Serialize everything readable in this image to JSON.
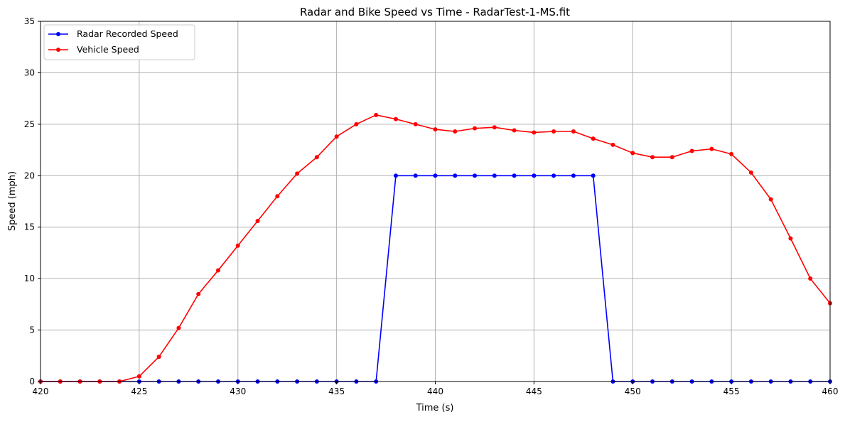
{
  "chart_data": {
    "type": "line",
    "title": "Radar and Bike Speed vs Time - RadarTest-1-MS.fit",
    "xlabel": "Time (s)",
    "ylabel": "Speed (mph)",
    "xlim": [
      420,
      460
    ],
    "ylim": [
      0,
      35
    ],
    "xticks": [
      420,
      425,
      430,
      435,
      440,
      445,
      450,
      455,
      460
    ],
    "yticks": [
      0,
      5,
      10,
      15,
      20,
      25,
      30,
      35
    ],
    "grid": true,
    "legend_position": "top-left",
    "x": [
      420,
      421,
      422,
      423,
      424,
      425,
      426,
      427,
      428,
      429,
      430,
      431,
      432,
      433,
      434,
      435,
      436,
      437,
      438,
      439,
      440,
      441,
      442,
      443,
      444,
      445,
      446,
      447,
      448,
      449,
      450,
      451,
      452,
      453,
      454,
      455,
      456,
      457,
      458,
      459,
      460
    ],
    "series": [
      {
        "name": "Radar Recorded Speed",
        "color": "#0000ff",
        "values": [
          0,
          0,
          0,
          0,
          0,
          0,
          0,
          0,
          0,
          0,
          0,
          0,
          0,
          0,
          0,
          0,
          0,
          0,
          20,
          20,
          20,
          20,
          20,
          20,
          20,
          20,
          20,
          20,
          20,
          0,
          0,
          0,
          0,
          0,
          0,
          0,
          0,
          0,
          0,
          0,
          0
        ]
      },
      {
        "name": "Vehicle Speed",
        "color": "#ff0000",
        "values": [
          0,
          0,
          0,
          0,
          0,
          0.5,
          2.4,
          5.2,
          8.5,
          10.8,
          13.2,
          15.6,
          18,
          20.2,
          21.8,
          23.8,
          25,
          25.9,
          25.5,
          25,
          24.5,
          24.3,
          24.6,
          24.7,
          24.4,
          24.2,
          24.3,
          24.3,
          23.6,
          23,
          22.2,
          21.8,
          21.8,
          22.4,
          22.6,
          22.1,
          20.3,
          17.7,
          13.9,
          10,
          7.6
        ]
      }
    ]
  }
}
